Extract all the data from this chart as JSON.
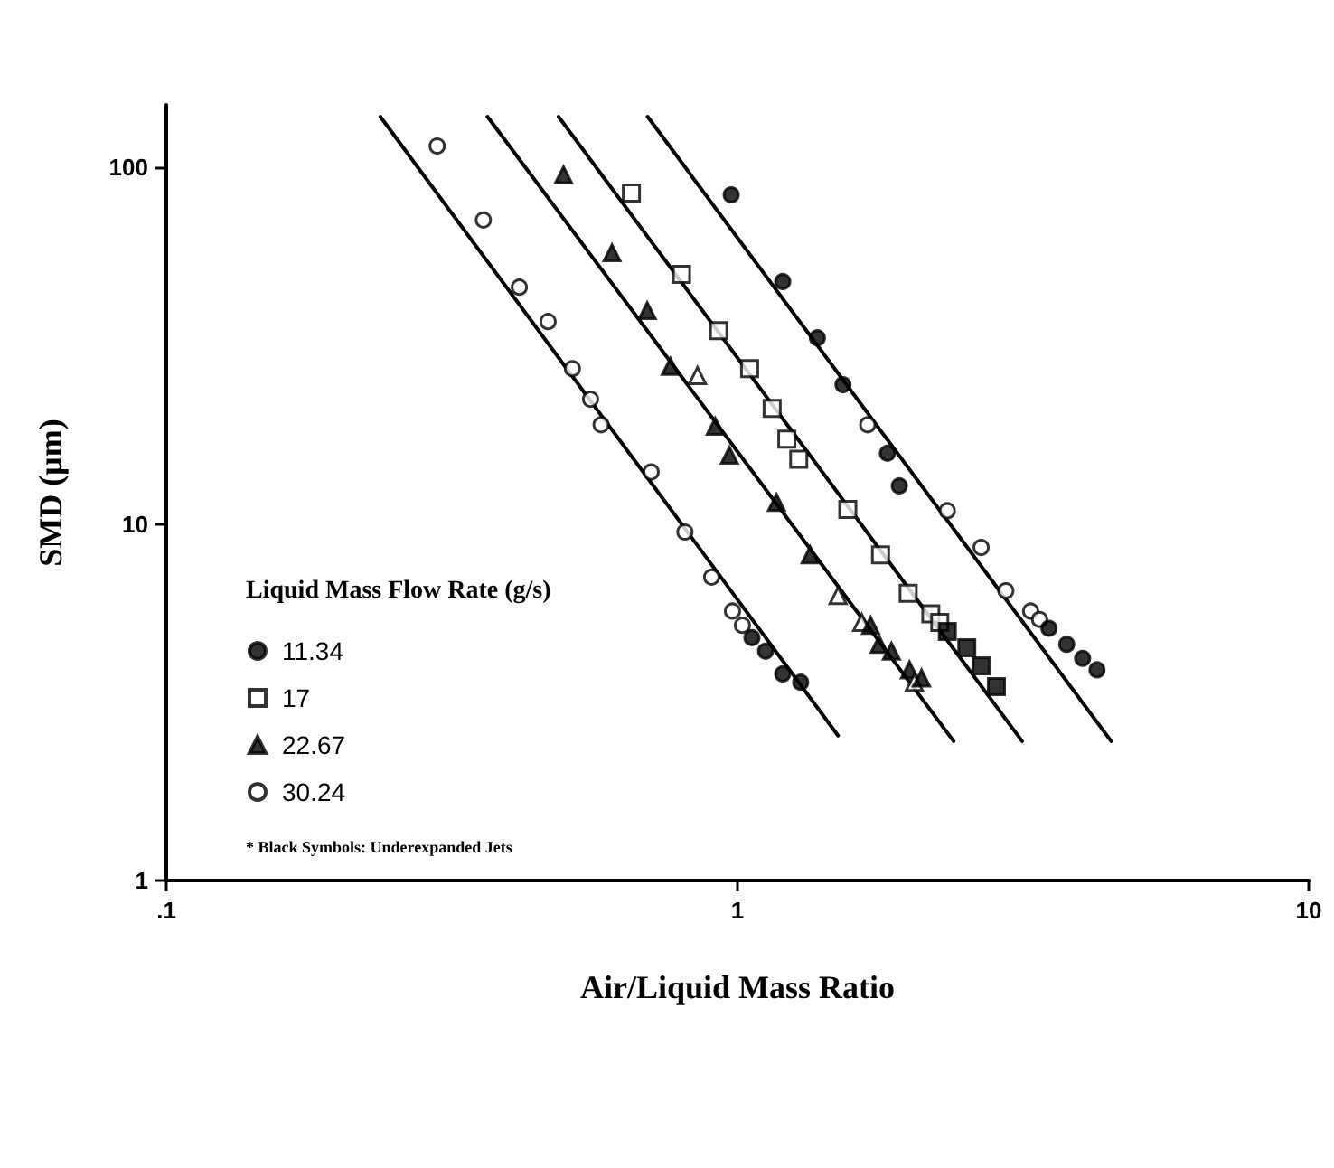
{
  "chart_data": {
    "type": "scatter",
    "xlabel": "Air/Liquid Mass Ratio",
    "ylabel": "SMD (μm)",
    "legend_title": "Liquid Mass Flow Rate (g/s)",
    "annotations": [
      "* Black Symbols: Underexpanded Jets"
    ],
    "log": "xy",
    "xlim": [
      0.1,
      10
    ],
    "ylim": [
      1,
      150
    ],
    "xticks": [
      {
        "value": 0.1,
        "label": ".1"
      },
      1,
      10
    ],
    "yticks": [
      1,
      10,
      100
    ],
    "grid": false,
    "legend": "bottom left",
    "series": [
      {
        "name": "11.34",
        "marker": "circle",
        "color": "#000000",
        "x": [
          0.975,
          1.2,
          1.38,
          1.53,
          1.69,
          1.83,
          1.92,
          2.33,
          2.67,
          2.95,
          3.26,
          3.38,
          3.51,
          3.77,
          4.02,
          4.26
        ],
        "values": [
          83.9,
          47.9,
          33.3,
          24.6,
          19.0,
          15.8,
          12.8,
          10.9,
          8.6,
          6.5,
          5.7,
          5.4,
          5.1,
          4.6,
          4.2,
          3.9
        ],
        "colors": [
          "#000000",
          "#000000",
          "#000000",
          "#000000",
          "#ffffff",
          "#000000",
          "#000000",
          "#ffffff",
          "#ffffff",
          "#ffffff",
          "#ffffff",
          "#ffffff",
          "#000000",
          "#000000",
          "#000000",
          "#000000"
        ]
      },
      {
        "name": "17",
        "marker": "square",
        "color": "#000000",
        "x": [
          0.652,
          0.798,
          0.927,
          1.05,
          1.15,
          1.22,
          1.28,
          1.56,
          1.78,
          1.99,
          2.18,
          2.26,
          2.33,
          2.52,
          2.67,
          2.84
        ],
        "values": [
          84.9,
          50.2,
          34.9,
          27.3,
          21.1,
          17.3,
          15.2,
          11.0,
          8.2,
          6.4,
          5.6,
          5.3,
          5.0,
          4.5,
          4.0,
          3.5
        ],
        "colors": [
          "#ffffff",
          "#ffffff",
          "#ffffff",
          "#ffffff",
          "#ffffff",
          "#ffffff",
          "#ffffff",
          "#ffffff",
          "#ffffff",
          "#ffffff",
          "#ffffff",
          "#ffffff",
          "#000000",
          "#000000",
          "#000000",
          "#000000"
        ]
      },
      {
        "name": "22.67",
        "marker": "triangle",
        "color": "#000000",
        "x": [
          0.496,
          0.603,
          0.695,
          0.763,
          0.851,
          0.914,
          0.968,
          1.17,
          1.34,
          1.5,
          1.65,
          1.71,
          1.77,
          1.86,
          2.0,
          2.04,
          2.1
        ],
        "values": [
          95.5,
          57.7,
          39.7,
          27.7,
          26.1,
          18.8,
          15.6,
          11.5,
          8.2,
          6.3,
          5.3,
          5.2,
          4.6,
          4.4,
          3.9,
          3.6,
          3.7
        ],
        "colors": [
          "#000000",
          "#000000",
          "#000000",
          "#000000",
          "#ffffff",
          "#000000",
          "#000000",
          "#000000",
          "#000000",
          "#ffffff",
          "#ffffff",
          "#000000",
          "#000000",
          "#000000",
          "#000000",
          "#ffffff",
          "#000000"
        ]
      },
      {
        "name": "30.24",
        "marker": "circle",
        "color": "#000000",
        "x": [
          0.298,
          0.359,
          0.415,
          0.466,
          0.514,
          0.553,
          0.577,
          0.706,
          0.809,
          0.901,
          0.98,
          1.02,
          1.06,
          1.12,
          1.2,
          1.29
        ],
        "values": [
          115,
          71.3,
          46.2,
          37.0,
          27.3,
          22.4,
          19.0,
          14.0,
          9.5,
          7.1,
          5.7,
          5.2,
          4.8,
          4.4,
          3.8,
          3.6
        ],
        "colors": [
          "#ffffff",
          "#ffffff",
          "#ffffff",
          "#ffffff",
          "#ffffff",
          "#ffffff",
          "#ffffff",
          "#ffffff",
          "#ffffff",
          "#ffffff",
          "#ffffff",
          "#ffffff",
          "#000000",
          "#000000",
          "#000000",
          "#000000"
        ]
      },
      {
        "type": "line",
        "marker": "none",
        "color": "#000000",
        "x": [
          0.237,
          1.5
        ],
        "values": [
          139,
          2.55
        ]
      },
      {
        "type": "line",
        "marker": "none",
        "color": "#000000",
        "x": [
          0.365,
          2.39
        ],
        "values": [
          139,
          2.46
        ]
      },
      {
        "type": "line",
        "marker": "none",
        "color": "#000000",
        "x": [
          0.486,
          3.15
        ],
        "values": [
          139,
          2.46
        ]
      },
      {
        "type": "line",
        "marker": "none",
        "color": "#000000",
        "x": [
          0.696,
          4.51
        ],
        "values": [
          139,
          2.46
        ]
      }
    ]
  }
}
